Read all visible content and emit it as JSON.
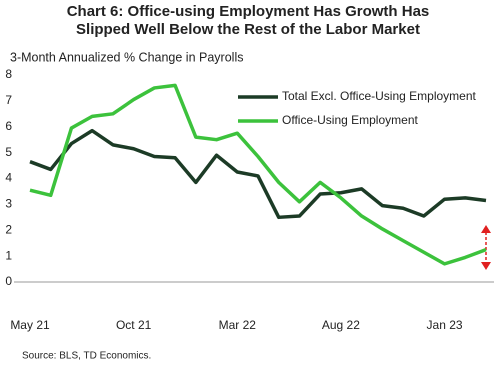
{
  "chart_data": {
    "type": "line",
    "title": "Chart 6: Office-using Employment Has Growth Has",
    "subtitle": "Slipped Well Below the Rest of the Labor Market",
    "y_label": "3-Month Annualized % Change in Payrolls",
    "source": "Source: BLS, TD Economics.",
    "categories": [
      "May 21",
      null,
      null,
      null,
      null,
      "Oct 21",
      null,
      null,
      null,
      null,
      "Mar 22",
      null,
      null,
      null,
      null,
      "Aug 22",
      null,
      null,
      null,
      null,
      "Jan 23",
      null,
      null
    ],
    "series": [
      {
        "name": "Total Excl. Office-Using Employment",
        "color": "#1c3b26",
        "values": [
          4.65,
          4.35,
          5.35,
          5.85,
          5.3,
          5.15,
          4.85,
          4.8,
          3.85,
          4.9,
          4.25,
          4.1,
          2.5,
          2.55,
          3.4,
          3.45,
          3.6,
          2.95,
          2.85,
          2.55,
          3.2,
          3.25,
          3.15
        ]
      },
      {
        "name": "Office-Using Employment",
        "color": "#3cc23c",
        "values": [
          3.55,
          3.35,
          5.95,
          6.4,
          6.5,
          7.05,
          7.5,
          7.6,
          5.6,
          5.5,
          5.75,
          4.85,
          3.85,
          3.1,
          3.85,
          3.25,
          2.55,
          2.05,
          1.6,
          1.15,
          0.7,
          0.95,
          1.25
        ]
      }
    ],
    "ylim": [
      0,
      8
    ],
    "yticks": [
      0,
      1,
      2,
      3,
      4,
      5,
      6,
      7,
      8
    ],
    "legend": "upper right"
  }
}
